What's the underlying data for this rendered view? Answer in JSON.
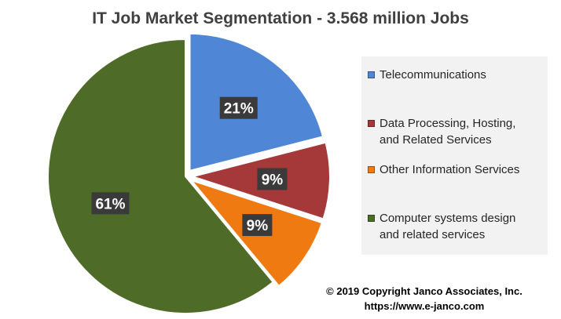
{
  "chart_data": {
    "type": "pie",
    "title": "IT Job Market Segmentation - 3.568 million Jobs",
    "slices": [
      {
        "name": "Telecommunications",
        "value": 21,
        "label": "21%",
        "color": "#4f86d6",
        "exploded": true
      },
      {
        "name": "Data Processing, Hosting, and Related Services",
        "value": 9,
        "label": "9%",
        "color": "#a5393a",
        "exploded": true
      },
      {
        "name": "Other Information Services",
        "value": 9,
        "label": "9%",
        "color": "#f07a12",
        "exploded": true
      },
      {
        "name": "Computer systems design and related services",
        "value": 61,
        "label": "61%",
        "color": "#4f6b28",
        "exploded": false
      }
    ],
    "legend": {
      "placement": "right",
      "entries": [
        {
          "lines": [
            "Telecommunications"
          ]
        },
        {
          "lines": [
            "Data Processing, Hosting,",
            "and Related Services"
          ]
        },
        {
          "lines": [
            "Other Information Services"
          ]
        },
        {
          "lines": [
            "Computer systems design",
            "and related services"
          ]
        }
      ]
    }
  },
  "footer": {
    "copyright": "© 2019  Copyright Janco Associates, Inc.",
    "url": "https://www.e-janco.com"
  }
}
